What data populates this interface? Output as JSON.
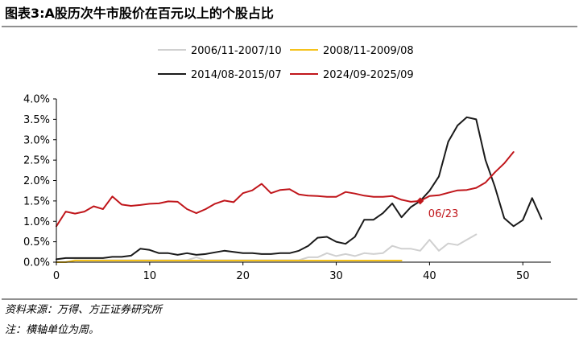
{
  "title": "图表3:A股历次牛市股价在百元以上的个股占比",
  "chart_data": {
    "type": "line",
    "x_axis": {
      "ticks": [
        0,
        10,
        20,
        30,
        40,
        50
      ],
      "range": [
        0,
        53
      ]
    },
    "y_axis": {
      "ticks": [
        "0.0%",
        "0.5%",
        "1.0%",
        "1.5%",
        "2.0%",
        "2.5%",
        "3.0%",
        "3.5%",
        "4.0%"
      ],
      "range": [
        0,
        4.0
      ],
      "unit": "%"
    },
    "legend_placement": "top",
    "grid": false,
    "series": [
      {
        "name": "2006/11-2007/10",
        "color": "#d0d0d0",
        "x": [
          0,
          1,
          2,
          3,
          4,
          5,
          6,
          7,
          8,
          9,
          10,
          11,
          12,
          13,
          14,
          15,
          16,
          17,
          18,
          19,
          20,
          21,
          22,
          23,
          24,
          25,
          26,
          27,
          28,
          29,
          30,
          31,
          32,
          33,
          34,
          35,
          36,
          37,
          38,
          39,
          40,
          41,
          42,
          43,
          44,
          45
        ],
        "y": [
          0,
          0,
          0.05,
          0.05,
          0.05,
          0.05,
          0.05,
          0.05,
          0.05,
          0.05,
          0.05,
          0.05,
          0.05,
          0.05,
          0.05,
          0.12,
          0.05,
          0.05,
          0.05,
          0.05,
          0.05,
          0.05,
          0.05,
          0.05,
          0.05,
          0.05,
          0.05,
          0.12,
          0.12,
          0.22,
          0.15,
          0.2,
          0.15,
          0.22,
          0.2,
          0.22,
          0.4,
          0.33,
          0.33,
          0.28,
          0.55,
          0.28,
          0.46,
          0.42,
          0.55,
          0.68
        ]
      },
      {
        "name": "2008/11-2009/08",
        "color": "#f5c21b",
        "x": [
          0,
          1,
          2,
          3,
          4,
          5,
          6,
          7,
          8,
          9,
          10,
          11,
          12,
          13,
          14,
          15,
          16,
          17,
          18,
          19,
          20,
          21,
          22,
          23,
          24,
          25,
          26,
          27,
          28,
          29,
          30,
          31,
          32,
          33,
          34,
          35,
          36,
          37
        ],
        "y": [
          0,
          0,
          0.04,
          0.04,
          0.04,
          0.04,
          0.04,
          0.04,
          0.04,
          0.04,
          0.04,
          0.04,
          0.04,
          0.04,
          0.04,
          0.04,
          0.04,
          0.04,
          0.04,
          0.04,
          0.04,
          0.04,
          0.04,
          0.04,
          0.04,
          0.04,
          0.04,
          0.04,
          0.04,
          0.04,
          0.04,
          0.04,
          0.04,
          0.04,
          0.04,
          0.04,
          0.04,
          0.04
        ]
      },
      {
        "name": "2014/08-2015/07",
        "color": "#1a1a1a",
        "x": [
          0,
          1,
          2,
          3,
          4,
          5,
          6,
          7,
          8,
          9,
          10,
          11,
          12,
          13,
          14,
          15,
          16,
          17,
          18,
          19,
          20,
          21,
          22,
          23,
          24,
          25,
          26,
          27,
          28,
          29,
          30,
          31,
          32,
          33,
          34,
          35,
          36,
          37,
          38,
          39,
          40,
          41,
          42,
          43,
          44,
          45,
          46,
          47,
          48,
          49,
          50,
          51,
          52
        ],
        "y": [
          0.07,
          0.1,
          0.1,
          0.1,
          0.1,
          0.1,
          0.13,
          0.13,
          0.16,
          0.33,
          0.3,
          0.22,
          0.22,
          0.18,
          0.22,
          0.18,
          0.2,
          0.24,
          0.28,
          0.25,
          0.22,
          0.22,
          0.2,
          0.2,
          0.22,
          0.22,
          0.28,
          0.4,
          0.6,
          0.62,
          0.5,
          0.45,
          0.62,
          1.04,
          1.04,
          1.2,
          1.44,
          1.1,
          1.35,
          1.5,
          1.75,
          2.1,
          2.95,
          3.35,
          3.55,
          3.5,
          2.5,
          1.85,
          1.08,
          0.88,
          1.03,
          1.57,
          1.06
        ]
      },
      {
        "name": "2024/09-2025/09",
        "color": "#c0161b",
        "x": [
          0,
          1,
          2,
          3,
          4,
          5,
          6,
          7,
          8,
          9,
          10,
          11,
          12,
          13,
          14,
          15,
          16,
          17,
          18,
          19,
          20,
          21,
          22,
          23,
          24,
          25,
          26,
          27,
          28,
          29,
          30,
          31,
          32,
          33,
          34,
          35,
          36,
          37,
          38,
          39,
          40,
          41,
          42,
          43,
          44,
          45,
          46,
          47,
          48,
          49
        ],
        "y": [
          0.88,
          1.24,
          1.19,
          1.24,
          1.37,
          1.3,
          1.61,
          1.41,
          1.38,
          1.4,
          1.43,
          1.44,
          1.49,
          1.48,
          1.3,
          1.2,
          1.3,
          1.43,
          1.51,
          1.47,
          1.69,
          1.76,
          1.92,
          1.69,
          1.77,
          1.79,
          1.66,
          1.63,
          1.62,
          1.6,
          1.6,
          1.72,
          1.68,
          1.63,
          1.6,
          1.6,
          1.62,
          1.53,
          1.48,
          1.5,
          1.62,
          1.64,
          1.7,
          1.76,
          1.77,
          1.82,
          1.95,
          2.2,
          2.42,
          2.7
        ]
      }
    ],
    "annotations": [
      {
        "text": "06/23",
        "x": 39,
        "y": 1.5,
        "color": "#c0161b"
      }
    ]
  },
  "footer": {
    "source": "资料来源：万得、方正证券研究所",
    "note": "注：横轴单位为周。"
  }
}
